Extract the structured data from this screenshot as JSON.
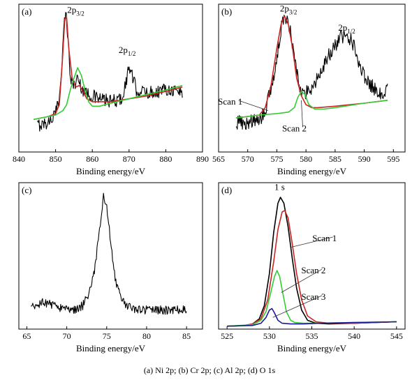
{
  "caption": "(a) Ni 2p; (b) Cr 2p; (c) Al 2p; (d) O 1s",
  "colors": {
    "raw": "#000000",
    "fit": "#cc2222",
    "comp": "#33cc33",
    "comp3": "#1a1a99"
  },
  "chart_data": [
    {
      "id": "a",
      "type": "line",
      "panel_label": "(a)",
      "xlabel": "Binding energy/eV",
      "ylabel": "",
      "xlim": [
        840,
        890
      ],
      "ylim": [
        0,
        1
      ],
      "xticks": [
        840,
        850,
        860,
        870,
        880,
        890
      ],
      "grid": false,
      "annotations": [
        {
          "main": "2p",
          "sub": "3/2",
          "x": 855.5,
          "y": 0.94
        },
        {
          "main": "2p",
          "sub": "1/2",
          "x": 869.5,
          "y": 0.67
        }
      ],
      "series": [
        {
          "role": "raw",
          "color": "#000000",
          "noise": 0.045,
          "x": [
            845,
            848,
            850,
            851,
            852,
            852.5,
            853,
            853.5,
            854,
            855,
            856,
            857,
            858,
            860,
            862,
            865,
            868,
            869,
            870,
            871,
            872,
            875,
            878,
            880,
            882,
            884.5
          ],
          "y": [
            0.18,
            0.2,
            0.26,
            0.36,
            0.72,
            0.93,
            0.9,
            0.72,
            0.5,
            0.45,
            0.5,
            0.44,
            0.4,
            0.38,
            0.36,
            0.34,
            0.36,
            0.45,
            0.58,
            0.5,
            0.42,
            0.4,
            0.41,
            0.43,
            0.42,
            0.4
          ]
        },
        {
          "role": "fit",
          "color": "#cc2222",
          "x": [
            844,
            848,
            850,
            851,
            851.8,
            852.5,
            853,
            853.6,
            854.5,
            855.5,
            856.5,
            857.5,
            858.5,
            860,
            862,
            865,
            870,
            875,
            880,
            884.5
          ],
          "y": [
            0.22,
            0.24,
            0.26,
            0.32,
            0.6,
            0.9,
            0.91,
            0.7,
            0.5,
            0.44,
            0.45,
            0.41,
            0.36,
            0.34,
            0.34,
            0.34,
            0.36,
            0.38,
            0.41,
            0.44
          ]
        },
        {
          "role": "comp",
          "color": "#33cc33",
          "x": [
            844,
            848,
            850,
            852,
            853,
            854,
            855,
            856,
            857,
            858,
            859,
            860,
            862,
            865,
            870,
            875,
            880,
            884.5
          ],
          "y": [
            0.22,
            0.24,
            0.25,
            0.28,
            0.32,
            0.42,
            0.5,
            0.57,
            0.52,
            0.42,
            0.34,
            0.31,
            0.31,
            0.33,
            0.36,
            0.39,
            0.42,
            0.45
          ]
        }
      ]
    },
    {
      "id": "b",
      "type": "line",
      "panel_label": "(b)",
      "xlabel": "Binding energy/eV",
      "ylabel": "",
      "xlim": [
        565,
        597
      ],
      "ylim": [
        0,
        1
      ],
      "xticks": [
        565,
        570,
        575,
        580,
        585,
        590,
        595
      ],
      "grid": false,
      "annotations": [
        {
          "main": "2p",
          "sub": "3/2",
          "x": 577,
          "y": 0.95
        },
        {
          "main": "2p",
          "sub": "1/2",
          "x": 587,
          "y": 0.82
        },
        {
          "main": "Scan 1",
          "sub": "",
          "x": 567,
          "y": 0.32,
          "leader_to": [
            573.5,
            0.28
          ]
        },
        {
          "main": "Scan 2",
          "sub": "",
          "x": 578,
          "y": 0.14,
          "leader_to": [
            579.2,
            0.35
          ]
        }
      ],
      "series": [
        {
          "role": "raw",
          "color": "#000000",
          "noise": 0.05,
          "x": [
            568,
            570,
            572,
            573,
            574,
            575,
            575.5,
            576,
            576.5,
            577,
            577.5,
            578,
            579,
            580,
            581,
            582,
            583,
            584,
            585,
            586,
            587,
            588,
            589,
            590,
            591,
            592,
            593,
            594
          ],
          "y": [
            0.2,
            0.2,
            0.22,
            0.28,
            0.42,
            0.62,
            0.78,
            0.88,
            0.92,
            0.88,
            0.78,
            0.62,
            0.44,
            0.4,
            0.44,
            0.5,
            0.58,
            0.66,
            0.72,
            0.78,
            0.8,
            0.74,
            0.62,
            0.52,
            0.46,
            0.42,
            0.4,
            0.44
          ]
        },
        {
          "role": "fit",
          "color": "#cc2222",
          "x": [
            568,
            570,
            572,
            573,
            574,
            575,
            575.7,
            576.3,
            577,
            577.7,
            578.4,
            579.2,
            580,
            581,
            582,
            585,
            590,
            594
          ],
          "y": [
            0.23,
            0.24,
            0.25,
            0.3,
            0.45,
            0.7,
            0.86,
            0.92,
            0.86,
            0.7,
            0.5,
            0.38,
            0.32,
            0.3,
            0.3,
            0.31,
            0.33,
            0.35
          ]
        },
        {
          "role": "comp",
          "color": "#33cc33",
          "x": [
            568,
            572,
            575,
            577,
            578,
            578.6,
            579.2,
            579.8,
            580.5,
            581.5,
            583,
            585,
            590,
            594
          ],
          "y": [
            0.23,
            0.25,
            0.26,
            0.27,
            0.3,
            0.37,
            0.41,
            0.39,
            0.32,
            0.29,
            0.29,
            0.3,
            0.33,
            0.35
          ]
        }
      ]
    },
    {
      "id": "c",
      "type": "line",
      "panel_label": "(c)",
      "xlabel": "Binding energy/eV",
      "ylabel": "",
      "xlim": [
        64,
        87
      ],
      "ylim": [
        0,
        1
      ],
      "xticks": [
        65,
        70,
        75,
        80,
        85
      ],
      "grid": false,
      "annotations": [],
      "series": [
        {
          "role": "raw",
          "color": "#000000",
          "noise": 0.03,
          "x": [
            65.5,
            67,
            68,
            69,
            70,
            71,
            72,
            72.8,
            73.4,
            73.9,
            74.3,
            74.6,
            74.9,
            75.2,
            75.6,
            76.1,
            76.7,
            77.5,
            78.5,
            80,
            82,
            83,
            85
          ],
          "y": [
            0.14,
            0.18,
            0.17,
            0.15,
            0.14,
            0.13,
            0.16,
            0.24,
            0.38,
            0.58,
            0.76,
            0.9,
            0.87,
            0.74,
            0.55,
            0.34,
            0.22,
            0.16,
            0.14,
            0.13,
            0.13,
            0.13,
            0.14
          ]
        }
      ]
    },
    {
      "id": "d",
      "type": "line",
      "panel_label": "(d)",
      "xlabel": "Binding energy/eV",
      "ylabel": "",
      "xlim": [
        524,
        546
      ],
      "ylim": [
        0,
        1
      ],
      "xticks": [
        525,
        530,
        535,
        540,
        545
      ],
      "grid": false,
      "annotations": [
        {
          "main": "1 s",
          "sub": "",
          "x": 531.2,
          "y": 0.95
        },
        {
          "main": "Scan 1",
          "sub": "",
          "x": 536.5,
          "y": 0.6,
          "leader_to": [
            532.6,
            0.56
          ]
        },
        {
          "main": "Scan 2",
          "sub": "",
          "x": 535.2,
          "y": 0.38,
          "leader_to": [
            531.4,
            0.25
          ]
        },
        {
          "main": "Scan 3",
          "sub": "",
          "x": 535.2,
          "y": 0.2,
          "leader_to": [
            530.4,
            0.08
          ]
        }
      ],
      "series": [
        {
          "role": "raw",
          "color": "#000000",
          "x": [
            525,
            527,
            528,
            528.8,
            529.4,
            530,
            530.5,
            531,
            531.3,
            531.7,
            532.2,
            532.7,
            533.2,
            533.8,
            534.5,
            535.5,
            537,
            540,
            545
          ],
          "y": [
            0.02,
            0.025,
            0.035,
            0.07,
            0.16,
            0.38,
            0.66,
            0.86,
            0.9,
            0.86,
            0.7,
            0.48,
            0.28,
            0.13,
            0.06,
            0.04,
            0.035,
            0.04,
            0.05
          ]
        },
        {
          "role": "fit",
          "color": "#cc2222",
          "x": [
            525,
            527,
            528,
            529,
            529.8,
            530.5,
            531,
            531.5,
            531.8,
            532.2,
            532.7,
            533.2,
            533.8,
            534.5,
            535.5,
            537,
            540,
            545
          ],
          "y": [
            0.02,
            0.025,
            0.035,
            0.07,
            0.2,
            0.46,
            0.68,
            0.8,
            0.81,
            0.76,
            0.58,
            0.38,
            0.2,
            0.09,
            0.05,
            0.04,
            0.04,
            0.05
          ]
        },
        {
          "role": "comp",
          "color": "#33cc33",
          "x": [
            525,
            528,
            529,
            529.6,
            530.2,
            530.6,
            530.9,
            531.2,
            531.6,
            532,
            532.5,
            533,
            534,
            536,
            540,
            545
          ],
          "y": [
            0.02,
            0.03,
            0.06,
            0.12,
            0.26,
            0.36,
            0.4,
            0.36,
            0.24,
            0.12,
            0.06,
            0.045,
            0.04,
            0.04,
            0.045,
            0.05
          ]
        },
        {
          "role": "comp3",
          "color": "#1a1a99",
          "x": [
            525,
            528,
            529,
            529.6,
            530,
            530.3,
            530.6,
            531,
            531.5,
            532.5,
            534,
            536,
            540,
            545
          ],
          "y": [
            0.02,
            0.025,
            0.04,
            0.08,
            0.13,
            0.14,
            0.11,
            0.06,
            0.04,
            0.035,
            0.035,
            0.04,
            0.045,
            0.05
          ]
        }
      ]
    }
  ]
}
